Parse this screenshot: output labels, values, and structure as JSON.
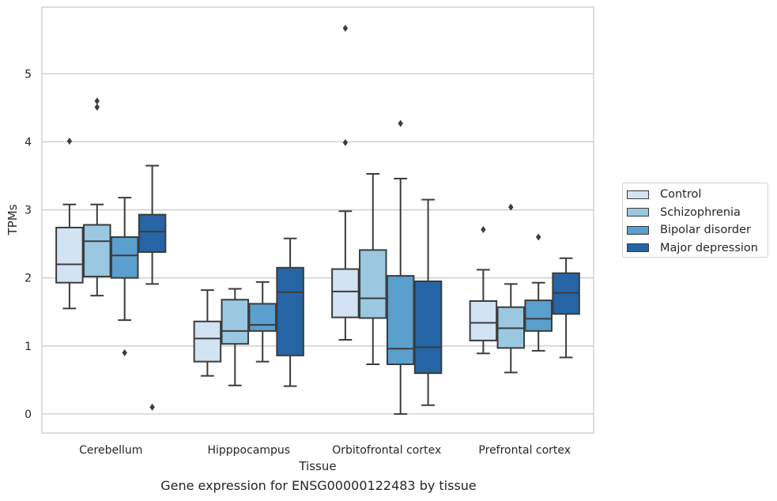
{
  "chart_data": {
    "type": "box",
    "caption": "Gene expression for ENSG00000122483 by tissue",
    "xlabel": "Tissue",
    "ylabel": "TPMs",
    "ylim": [
      -0.28,
      5.98
    ],
    "yticks": [
      0,
      1,
      2,
      3,
      4,
      5
    ],
    "grid": "horizontal",
    "legend_position": "right",
    "categories": [
      "Cerebellum",
      "Hipppocampus",
      "Orbitofrontal cortex",
      "Prefrontal cortex"
    ],
    "series": [
      {
        "name": "Control",
        "color": "#d2e3f3",
        "boxes": [
          {
            "whislo": 1.55,
            "q1": 1.93,
            "med": 2.2,
            "q3": 2.74,
            "whishi": 3.08,
            "fliers": [
              4.01
            ]
          },
          {
            "whislo": 0.56,
            "q1": 0.77,
            "med": 1.11,
            "q3": 1.36,
            "whishi": 1.82,
            "fliers": []
          },
          {
            "whislo": 1.09,
            "q1": 1.42,
            "med": 1.8,
            "q3": 2.13,
            "whishi": 2.98,
            "fliers": [
              3.99,
              5.67
            ]
          },
          {
            "whislo": 0.89,
            "q1": 1.08,
            "med": 1.34,
            "q3": 1.66,
            "whishi": 2.12,
            "fliers": [
              2.71
            ]
          }
        ]
      },
      {
        "name": "Schizophrenia",
        "color": "#9ac8e0",
        "boxes": [
          {
            "whislo": 1.74,
            "q1": 2.02,
            "med": 2.54,
            "q3": 2.78,
            "whishi": 3.08,
            "fliers": [
              4.51,
              4.6
            ]
          },
          {
            "whislo": 0.42,
            "q1": 1.03,
            "med": 1.22,
            "q3": 1.68,
            "whishi": 1.84,
            "fliers": []
          },
          {
            "whislo": 0.73,
            "q1": 1.41,
            "med": 1.7,
            "q3": 2.41,
            "whishi": 3.53,
            "fliers": []
          },
          {
            "whislo": 0.61,
            "q1": 0.97,
            "med": 1.26,
            "q3": 1.57,
            "whishi": 1.91,
            "fliers": [
              3.04
            ]
          }
        ]
      },
      {
        "name": "Bipolar disorder",
        "color": "#5a9fcd",
        "boxes": [
          {
            "whislo": 1.38,
            "q1": 2.0,
            "med": 2.33,
            "q3": 2.6,
            "whishi": 3.18,
            "fliers": [
              0.9
            ]
          },
          {
            "whislo": 0.77,
            "q1": 1.22,
            "med": 1.31,
            "q3": 1.62,
            "whishi": 1.94,
            "fliers": []
          },
          {
            "whislo": 0.0,
            "q1": 0.73,
            "med": 0.96,
            "q3": 2.03,
            "whishi": 3.46,
            "fliers": [
              4.27
            ]
          },
          {
            "whislo": 0.93,
            "q1": 1.22,
            "med": 1.4,
            "q3": 1.67,
            "whishi": 1.93,
            "fliers": [
              2.6
            ]
          }
        ]
      },
      {
        "name": "Major depression",
        "color": "#2565a5",
        "boxes": [
          {
            "whislo": 1.91,
            "q1": 2.38,
            "med": 2.68,
            "q3": 2.93,
            "whishi": 3.65,
            "fliers": [
              0.1
            ]
          },
          {
            "whislo": 0.41,
            "q1": 0.86,
            "med": 1.79,
            "q3": 2.15,
            "whishi": 2.58,
            "fliers": []
          },
          {
            "whislo": 0.13,
            "q1": 0.6,
            "med": 0.98,
            "q3": 1.95,
            "whishi": 3.15,
            "fliers": []
          },
          {
            "whislo": 0.83,
            "q1": 1.47,
            "med": 1.78,
            "q3": 2.07,
            "whishi": 2.29,
            "fliers": []
          }
        ]
      }
    ]
  }
}
